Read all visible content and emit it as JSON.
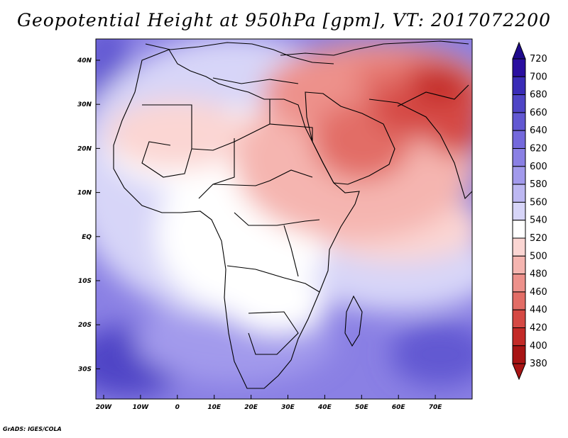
{
  "title": "Geopotential Height at 950hPa [gpm], VT: 2017072200",
  "credit": "GrADS: IGES/COLA",
  "map": {
    "lat_ticks": [
      "40N",
      "30N",
      "20N",
      "10N",
      "EQ",
      "10S",
      "20S",
      "30S"
    ],
    "lon_ticks": [
      "20W",
      "10W",
      "0",
      "10E",
      "20E",
      "30E",
      "40E",
      "50E",
      "60E",
      "70E"
    ]
  },
  "colorbar": {
    "levels": [
      720,
      700,
      680,
      660,
      640,
      620,
      600,
      580,
      560,
      540,
      520,
      500,
      480,
      460,
      440,
      420,
      400,
      380
    ],
    "colors": [
      "#2a0fa0",
      "#3a2cb7",
      "#4f45c6",
      "#6258d2",
      "#7469dc",
      "#8a80e4",
      "#a29aec",
      "#bdb8f2",
      "#d7d5f8",
      "#ffffff",
      "#fbd6d3",
      "#f5b5b0",
      "#ed918b",
      "#e26d66",
      "#d54944",
      "#c32a27",
      "#a81414"
    ],
    "top_arrow_color": "#1f0a8c",
    "bottom_arrow_color": "#a81414"
  }
}
